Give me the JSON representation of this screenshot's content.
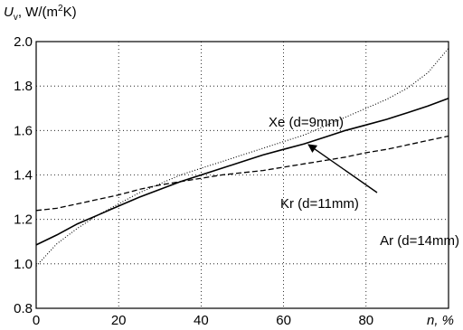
{
  "chart_data": {
    "type": "line",
    "title": "",
    "ylabel": {
      "symbol": "U",
      "subscript": "v",
      "unit_prefix": ", W/(m",
      "unit_sup": "2",
      "unit_suffix": "K)"
    },
    "xlabel": "n, %",
    "xlim": [
      0,
      100
    ],
    "ylim": [
      0.8,
      2.0
    ],
    "x_ticks": [
      0,
      20,
      40,
      60,
      80
    ],
    "x_tick_labels": [
      "0",
      "20",
      "40",
      "60",
      "80"
    ],
    "y_ticks": [
      0.8,
      1.0,
      1.2,
      1.4,
      1.6,
      1.8,
      2.0
    ],
    "y_tick_labels": [
      "0.8",
      "1.0",
      "1.2",
      "1.4",
      "1.6",
      "1.8",
      "2.0"
    ],
    "grid": true,
    "grid_style": "dotted",
    "series": [
      {
        "name": "Xe (d=9mm)",
        "style": "dotted",
        "x": [
          0,
          2,
          5,
          10,
          15,
          20,
          25,
          30,
          35,
          40,
          45,
          50,
          55,
          60,
          65,
          70,
          75,
          80,
          85,
          90,
          95,
          100
        ],
        "y": [
          0.99,
          1.03,
          1.09,
          1.16,
          1.22,
          1.27,
          1.32,
          1.36,
          1.4,
          1.43,
          1.46,
          1.49,
          1.52,
          1.55,
          1.58,
          1.62,
          1.66,
          1.7,
          1.74,
          1.79,
          1.86,
          1.97
        ]
      },
      {
        "name": "Kr (d=11mm)",
        "style": "solid",
        "x": [
          0,
          5,
          10,
          15,
          20,
          25,
          30,
          35,
          40,
          45,
          50,
          55,
          60,
          65,
          70,
          75,
          80,
          85,
          90,
          95,
          100
        ],
        "y": [
          1.085,
          1.13,
          1.18,
          1.22,
          1.26,
          1.3,
          1.335,
          1.37,
          1.4,
          1.43,
          1.46,
          1.49,
          1.515,
          1.54,
          1.57,
          1.6,
          1.625,
          1.65,
          1.68,
          1.71,
          1.745
        ]
      },
      {
        "name": "Ar (d=14mm)",
        "style": "dashed",
        "x": [
          0,
          5,
          10,
          15,
          20,
          25,
          30,
          35,
          40,
          45,
          50,
          55,
          60,
          65,
          70,
          75,
          80,
          85,
          90,
          95,
          100
        ],
        "y": [
          1.24,
          1.25,
          1.27,
          1.29,
          1.31,
          1.335,
          1.355,
          1.37,
          1.385,
          1.4,
          1.41,
          1.42,
          1.435,
          1.45,
          1.465,
          1.48,
          1.5,
          1.515,
          1.535,
          1.555,
          1.575
        ]
      }
    ],
    "annotations": [
      {
        "text": "Xe (d=9mm)",
        "series": "Xe (d=9mm)"
      },
      {
        "text": "Ar (d=14mm)",
        "series": "Ar (d=14mm)"
      },
      {
        "text": "Kr (d=11mm)",
        "series": "Kr (d=11mm)",
        "arrow_to": [
          66,
          1.545
        ]
      }
    ]
  }
}
